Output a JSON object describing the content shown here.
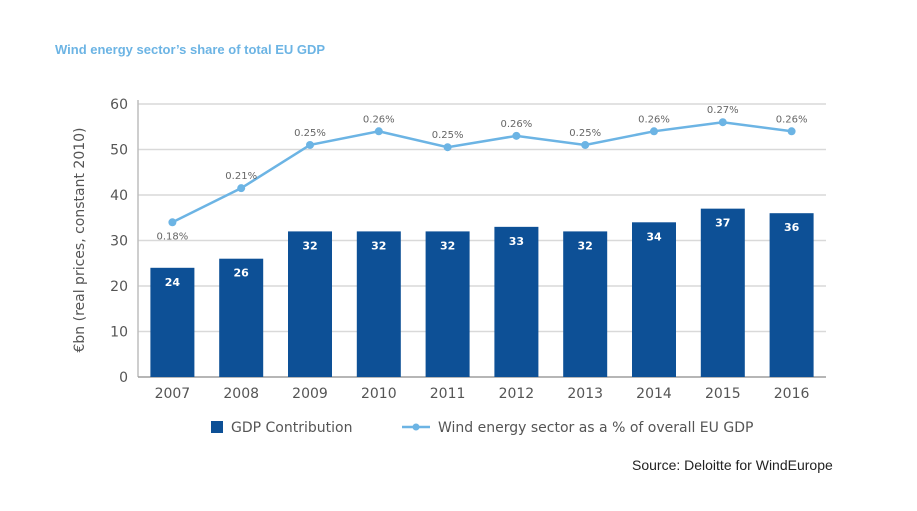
{
  "title": "Wind energy sector’s share of total EU GDP",
  "source": "Source: Deloitte for WindEurope",
  "colors": {
    "bar": "#0d5096",
    "line": "#6cb4e4",
    "title": "#6cb4e4",
    "grid": "#d9d9d9"
  },
  "chart_data": {
    "type": "bar",
    "title": "Wind energy sector’s share of total EU GDP",
    "categories": [
      "2007",
      "2008",
      "2009",
      "2010",
      "2011",
      "2012",
      "2013",
      "2014",
      "2015",
      "2016"
    ],
    "ylabel": "€bn (real prices, constant 2010)",
    "xlabel": "",
    "ylim": [
      0,
      60
    ],
    "yticks": [
      0,
      10,
      20,
      30,
      40,
      50,
      60
    ],
    "grid": true,
    "legend_position": "bottom",
    "series": [
      {
        "name": "GDP Contribution",
        "type": "bar",
        "values": [
          24,
          26,
          32,
          32,
          32,
          33,
          32,
          34,
          37,
          36
        ],
        "labels": [
          "24",
          "26",
          "32",
          "32",
          "32",
          "33",
          "32",
          "34",
          "37",
          "36"
        ]
      },
      {
        "name": "Wind energy sector as a % of overall EU GDP",
        "type": "line",
        "values_percent": [
          0.18,
          0.21,
          0.25,
          0.26,
          0.25,
          0.26,
          0.25,
          0.26,
          0.27,
          0.26
        ],
        "plotted_on_left_axis": [
          34,
          41.5,
          51,
          54,
          50.5,
          53,
          51,
          54,
          56,
          54
        ],
        "labels": [
          "0.18%",
          "0.21%",
          "0.25%",
          "0.26%",
          "0.25%",
          "0.26%",
          "0.25%",
          "0.26%",
          "0.27%",
          "0.26%"
        ]
      }
    ]
  }
}
